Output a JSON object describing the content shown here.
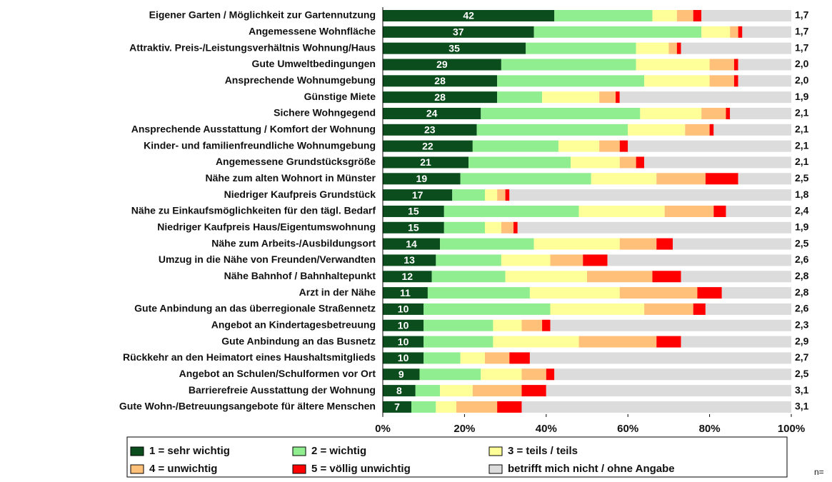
{
  "chart_data": {
    "type": "stacked_bar_horizontal",
    "categories": [
      "Eigener Garten / Möglichkeit zur Gartennutzung",
      "Angemessene Wohnfläche",
      "Attraktiv. Preis-/Leistungsverhältnis Wohnung/Haus",
      "Gute Umweltbedingungen",
      "Ansprechende Wohnumgebung",
      "Günstige Miete",
      "Sichere Wohngegend",
      "Ansprechende Ausstattung / Komfort der Wohnung",
      "Kinder- und familienfreundliche Wohnumgebung",
      "Angemessene Grundstücksgröße",
      "Nähe zum alten Wohnort in Münster",
      "Niedriger Kaufpreis Grundstück",
      "Nähe zu Einkaufsmöglichkeiten für den tägl. Bedarf",
      "Niedriger Kaufpreis Haus/Eigentumswohnung",
      "Nähe zum Arbeits-/Ausbildungsort",
      "Umzug in die Nähe von Freunden/Verwandten",
      "Nähe Bahnhof / Bahnhaltepunkt",
      "Arzt in der Nähe",
      "Gute Anbindung an das überregionale Straßennetz",
      "Angebot an Kindertagesbetreuung",
      "Gute Anbindung an das Busnetz",
      "Rückkehr an den Heimatort eines Haushaltsmitglieds",
      "Angebot an Schulen/Schulformen vor Ort",
      "Barrierefreie Ausstattung der Wohnung",
      "Gute Wohn-/Betreuungsangebote für ältere Menschen"
    ],
    "series": [
      {
        "name": "1 = sehr wichtig",
        "color": "#0b4d1c",
        "values": [
          42,
          37,
          35,
          29,
          28,
          28,
          24,
          23,
          22,
          21,
          19,
          17,
          15,
          15,
          14,
          13,
          12,
          11,
          10,
          10,
          10,
          10,
          9,
          8,
          7
        ]
      },
      {
        "name": "2 = wichtig",
        "color": "#90ee90",
        "values": [
          24,
          41,
          27,
          33,
          36,
          11,
          39,
          37,
          21,
          25,
          32,
          8,
          33,
          10,
          23,
          16,
          18,
          25,
          31,
          17,
          17,
          9,
          15,
          6,
          6
        ]
      },
      {
        "name": "3 = teils / teils",
        "color": "#ffff99",
        "values": [
          6,
          7,
          8,
          18,
          16,
          14,
          15,
          14,
          10,
          12,
          16,
          3,
          21,
          4,
          21,
          12,
          20,
          22,
          23,
          7,
          21,
          6,
          10,
          8,
          5
        ]
      },
      {
        "name": "4 = unwichtig",
        "color": "#ffc07a",
        "values": [
          4,
          2,
          2,
          6,
          6,
          4,
          6,
          6,
          5,
          4,
          12,
          2,
          12,
          3,
          9,
          8,
          16,
          19,
          12,
          5,
          19,
          6,
          6,
          12,
          10
        ]
      },
      {
        "name": "5 = völlig unwichtig",
        "color": "#ff0000",
        "values": [
          2,
          1,
          1,
          1,
          1,
          1,
          1,
          1,
          2,
          2,
          8,
          1,
          3,
          1,
          4,
          6,
          7,
          6,
          3,
          2,
          6,
          5,
          2,
          6,
          6
        ]
      },
      {
        "name": "betrifft mich nicht / ohne Angabe",
        "color": "#dcdcdc",
        "values": [
          22,
          12,
          27,
          13,
          13,
          42,
          15,
          19,
          40,
          36,
          13,
          69,
          16,
          67,
          29,
          45,
          27,
          17,
          21,
          59,
          27,
          64,
          58,
          60,
          66
        ]
      }
    ],
    "mean_labels": [
      "1,7",
      "1,7",
      "1,7",
      "2,0",
      "2,0",
      "1,9",
      "2,1",
      "2,1",
      "2,1",
      "2,1",
      "2,5",
      "1,8",
      "2,4",
      "1,9",
      "2,5",
      "2,6",
      "2,8",
      "2,8",
      "2,6",
      "2,3",
      "2,9",
      "2,7",
      "2,5",
      "3,1",
      "3,1"
    ],
    "xlim": [
      0,
      100
    ],
    "xticks": [
      {
        "value": 0,
        "label": "0%"
      },
      {
        "value": 20,
        "label": "20%"
      },
      {
        "value": 40,
        "label": "40%"
      },
      {
        "value": 60,
        "label": "60%"
      },
      {
        "value": 80,
        "label": "80%"
      },
      {
        "value": 100,
        "label": "100%"
      }
    ],
    "footnote": "n="
  }
}
